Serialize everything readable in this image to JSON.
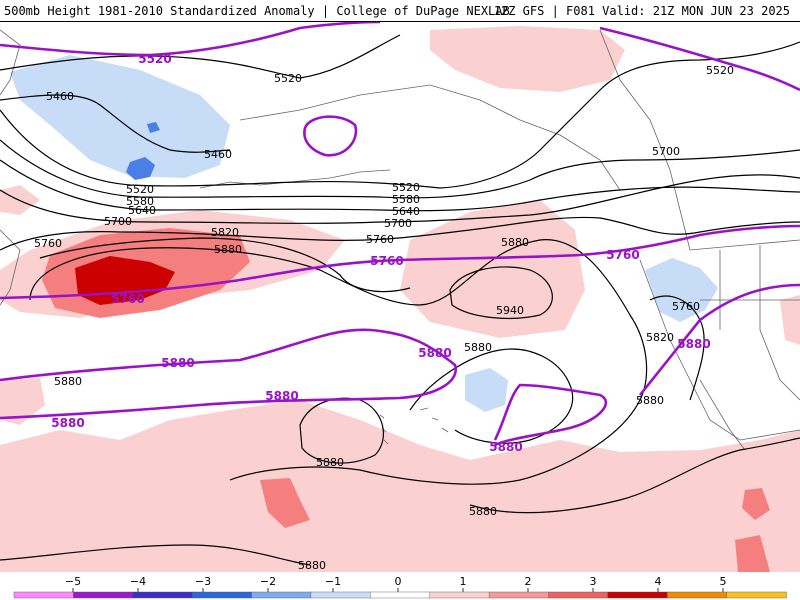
{
  "header": {
    "title_left": "500mb Height 1981-2010 Standardized Anomaly | College of DuPage NEXLAB",
    "title_right": "12Z GFS | F081 Valid: 21Z MON JUN 23 2025"
  },
  "colors": {
    "neg_light": "#c6dcf7",
    "neg_mid": "#92bdf1",
    "neg_strong": "#4a7fe6",
    "pos_light": "#fbd0d0",
    "pos_mid": "#f57f7f",
    "pos_strong": "#cc0000",
    "contour_black": "#000000",
    "contour_purple": "#9a12c8",
    "land_outline": "#666666"
  },
  "contour_labels": {
    "black": [
      "5460",
      "5520",
      "5460",
      "5520",
      "5580",
      "5640",
      "5700",
      "5760",
      "5820",
      "5880",
      "5520",
      "5580",
      "5640",
      "5700",
      "5760",
      "5880",
      "5940",
      "5700",
      "5520",
      "5760",
      "5820",
      "5880",
      "5880",
      "5880",
      "5880",
      "5880",
      "5880"
    ],
    "purple": [
      "5520",
      "5760",
      "5760",
      "5760",
      "5880",
      "5880",
      "5880",
      "5880",
      "5880"
    ]
  },
  "colorbar": {
    "ticks": [
      "−5",
      "−4",
      "−3",
      "−2",
      "−1",
      "0",
      "1",
      "2",
      "3",
      "4",
      "5"
    ],
    "segments": [
      "#ff88ff",
      "#9a1ad0",
      "#3a2fc8",
      "#2a66dd",
      "#7eaaee",
      "#c8dcf8",
      "#ffffff",
      "#fbd0d0",
      "#f59a9a",
      "#f06060",
      "#c80000",
      "#f08a00",
      "#f8c020"
    ]
  }
}
